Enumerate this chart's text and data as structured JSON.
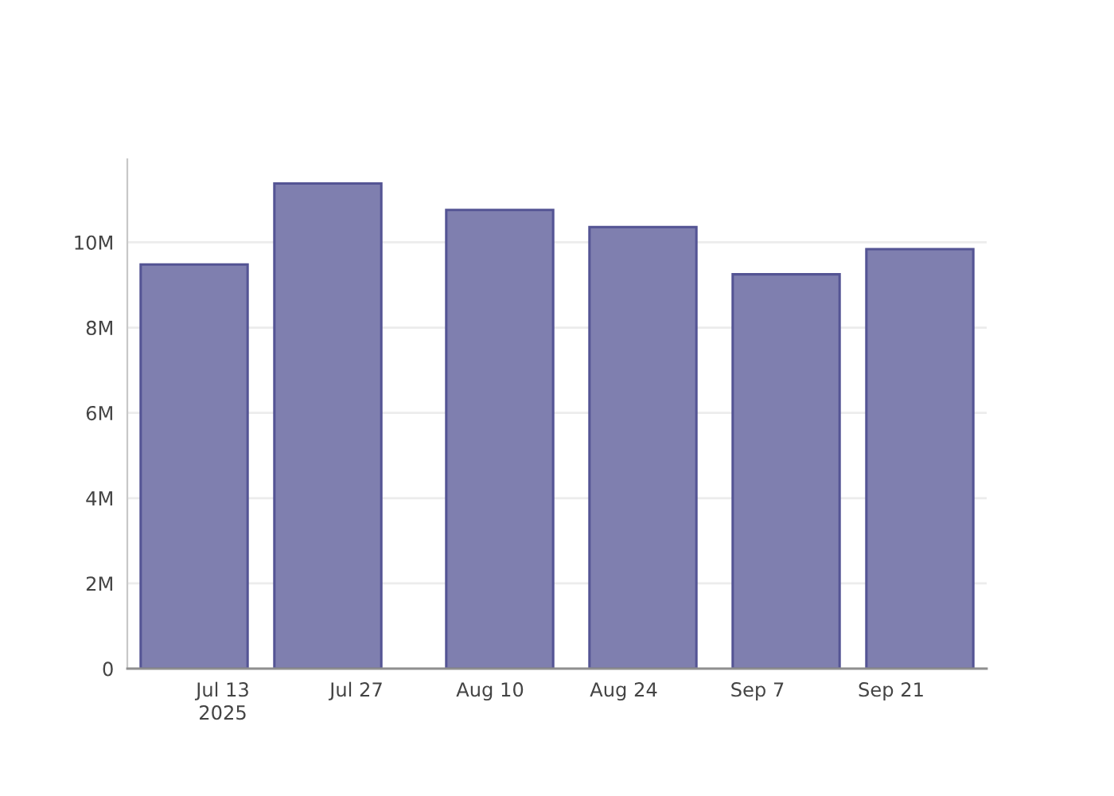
{
  "chart_data": {
    "type": "bar",
    "x": [
      "2025-07-10",
      "2025-07-24",
      "2025-08-11",
      "2025-08-26",
      "2025-09-10",
      "2025-09-24"
    ],
    "values": [
      9480000,
      11380000,
      10760000,
      10360000,
      9250000,
      9840000
    ],
    "color": "#7f7faf",
    "xlim": [
      "2025-07-03",
      "2025-10-01"
    ],
    "xticks": [
      {
        "value": "2025-07-13",
        "label": "Jul 13\n2025"
      },
      {
        "value": "2025-07-27",
        "label": "Jul 27"
      },
      {
        "value": "2025-08-10",
        "label": "Aug 10"
      },
      {
        "value": "2025-08-24",
        "label": "Aug 24"
      },
      {
        "value": "2025-09-07",
        "label": "Sep 7"
      },
      {
        "value": "2025-09-21",
        "label": "Sep 21"
      }
    ],
    "ylim": [
      0,
      11950000
    ],
    "yticks": [
      0,
      {
        "value": 2000000,
        "label": "2M"
      },
      {
        "value": 4000000,
        "label": "4M"
      },
      {
        "value": 6000000,
        "label": "6M"
      },
      {
        "value": 8000000,
        "label": "8M"
      },
      {
        "value": 10000000,
        "label": "10M"
      }
    ],
    "grid": "y"
  }
}
